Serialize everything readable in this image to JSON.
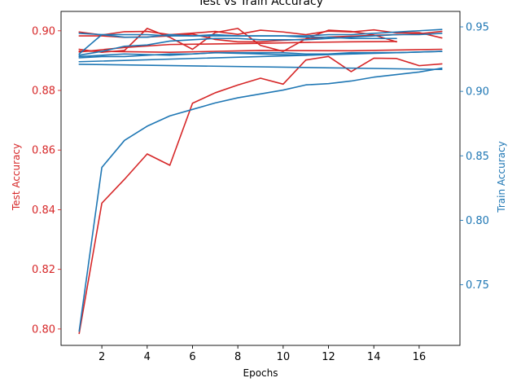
{
  "chart_data": {
    "type": "line",
    "title": "Test vs Train Accuracy",
    "xlabel": "Epochs",
    "ylabel_left": "Test Accuracy",
    "ylabel_right": "Train Accuracy",
    "xlim": [
      0.2,
      17.8
    ],
    "ylim_left": [
      0.7945,
      0.9065
    ],
    "ylim_right": [
      0.703,
      0.962
    ],
    "x_ticks": [
      2,
      4,
      6,
      8,
      10,
      12,
      14,
      16
    ],
    "y_ticks_left": [
      0.8,
      0.82,
      0.84,
      0.86,
      0.88,
      0.9
    ],
    "y_ticks_right": [
      0.75,
      0.8,
      0.85,
      0.9,
      0.95
    ],
    "grid": false,
    "colors": {
      "test": "#d62728",
      "train": "#1f77b4"
    },
    "series": [
      {
        "axis": "left",
        "x": [
          1,
          2,
          3,
          4,
          5,
          6,
          7,
          8,
          9,
          10,
          11,
          12,
          13,
          14,
          15,
          16,
          17
        ],
        "values": [
          0.7985,
          0.8422,
          0.8502,
          0.8587,
          0.8549,
          0.8757,
          0.8792,
          0.8818,
          0.8841,
          0.8821,
          0.8902,
          0.8914,
          0.8863,
          0.8908,
          0.8907,
          0.8883,
          0.8889
        ]
      },
      {
        "axis": "left",
        "x": [
          1,
          2,
          3,
          4,
          5,
          6,
          7,
          8,
          9,
          10,
          11,
          12,
          13,
          14,
          15
        ],
        "values": [
          0.8938,
          0.8928,
          0.8934,
          0.9008,
          0.8978,
          0.8938,
          0.8994,
          0.9008,
          0.8951,
          0.8931,
          0.8973,
          0.9002,
          0.8998,
          0.8986,
          0.8963
        ]
      },
      {
        "axis": "left",
        "x": [
          1,
          2,
          3,
          4,
          5,
          6,
          7,
          8,
          9,
          10,
          11,
          12,
          13,
          14,
          15,
          16,
          17
        ],
        "values": [
          0.8996,
          0.8986,
          0.8997,
          0.8998,
          0.8987,
          0.8992,
          0.8998,
          0.8988,
          0.9002,
          0.8996,
          0.8987,
          0.8999,
          0.8996,
          0.9003,
          0.8993,
          0.8994,
          0.8976
        ]
      },
      {
        "axis": "left",
        "x": [
          1,
          2,
          3,
          4,
          5,
          6,
          7,
          8,
          9,
          10,
          11,
          12,
          13,
          14,
          15,
          16,
          17
        ],
        "values": [
          0.8983,
          0.8983,
          0.8978,
          0.8979,
          0.8983,
          0.8989,
          0.8971,
          0.8963,
          0.8963,
          0.8968,
          0.8972,
          0.8979,
          0.8982,
          0.8985,
          0.8987,
          0.899,
          0.8998
        ]
      },
      {
        "axis": "left",
        "x": [
          1,
          3,
          5,
          7,
          9,
          11,
          13,
          15
        ],
        "values": [
          0.8929,
          0.8944,
          0.8954,
          0.8956,
          0.8958,
          0.8961,
          0.8963,
          0.8964
        ]
      },
      {
        "axis": "left",
        "x": [
          1,
          5,
          9,
          13,
          17
        ],
        "values": [
          0.8932,
          0.8928,
          0.8934,
          0.8933,
          0.8938
        ]
      },
      {
        "axis": "right",
        "x": [
          1,
          2,
          3,
          4,
          5,
          6,
          7,
          8,
          9,
          10,
          11,
          12,
          13,
          14,
          15,
          16,
          17
        ],
        "values": [
          0.714,
          0.841,
          0.862,
          0.873,
          0.881,
          0.886,
          0.891,
          0.895,
          0.898,
          0.901,
          0.905,
          0.906,
          0.908,
          0.911,
          0.913,
          0.915,
          0.918
        ]
      },
      {
        "axis": "right",
        "x": [
          1,
          2,
          3,
          4,
          5,
          6,
          7,
          8,
          9,
          10,
          11,
          12,
          13,
          14,
          15,
          16,
          17
        ],
        "values": [
          0.945,
          0.944,
          0.944,
          0.944,
          0.943,
          0.943,
          0.943,
          0.943,
          0.943,
          0.943,
          0.943,
          0.944,
          0.944,
          0.945,
          0.946,
          0.947,
          0.948
        ]
      },
      {
        "axis": "right",
        "x": [
          1,
          2,
          3,
          4,
          5,
          6,
          7,
          8,
          9,
          10,
          11,
          12,
          13,
          14,
          15,
          16,
          17
        ],
        "values": [
          0.928,
          0.931,
          0.935,
          0.936,
          0.939,
          0.94,
          0.941,
          0.941,
          0.94,
          0.94,
          0.94,
          0.941,
          0.942,
          0.943,
          0.944,
          0.944,
          0.945
        ]
      },
      {
        "axis": "right",
        "x": [
          1,
          17
        ],
        "values": [
          0.923,
          0.931
        ]
      },
      {
        "axis": "right",
        "x": [
          1,
          17
        ],
        "values": [
          0.921,
          0.917
        ]
      },
      {
        "axis": "right",
        "x": [
          1,
          2,
          3,
          4,
          5,
          6,
          7,
          8,
          9,
          10,
          11,
          12,
          13,
          14,
          15
        ],
        "values": [
          0.929,
          0.944,
          0.942,
          0.942,
          0.944,
          0.943,
          0.944,
          0.943,
          0.943,
          0.943,
          0.942,
          0.942,
          0.941,
          0.941,
          0.941
        ]
      },
      {
        "axis": "right",
        "x": [
          1,
          2,
          3,
          4,
          5,
          6,
          7,
          8,
          9,
          10,
          11,
          12,
          13,
          14,
          15
        ],
        "values": [
          0.926,
          0.927,
          0.927,
          0.928,
          0.929,
          0.929,
          0.93,
          0.93,
          0.93,
          0.93,
          0.929,
          0.929,
          0.929,
          0.93,
          0.93
        ]
      },
      {
        "axis": "right",
        "x": [
          1,
          3,
          5,
          7,
          9,
          11,
          13,
          15,
          17
        ],
        "values": [
          0.927,
          0.929,
          0.928,
          0.93,
          0.929,
          0.928,
          0.93,
          0.93,
          0.931
        ]
      }
    ]
  }
}
